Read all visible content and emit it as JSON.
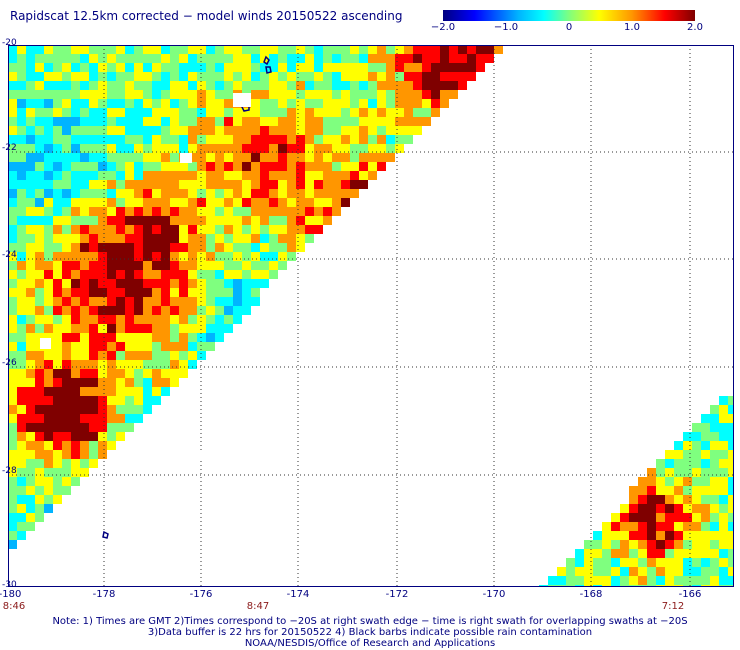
{
  "title": "Rapidscat 12.5km corrected − model winds 20150522 ascending",
  "colorbar": {
    "ticks": [
      "−2.0",
      "−1.0",
      "0",
      "1.0",
      "2.0"
    ],
    "range": [
      -2.0,
      2.0
    ],
    "colors": [
      "#00007f",
      "#0000ff",
      "#00b4ff",
      "#00ffff",
      "#7fff7f",
      "#ffff00",
      "#ff9600",
      "#ff0000",
      "#7f0000"
    ]
  },
  "map": {
    "lon_range": [
      -180,
      -165
    ],
    "lat_range": [
      -30,
      -20
    ],
    "x_tick_labels": [
      "-180",
      "-178",
      "-176",
      "-174",
      "-172",
      "-170",
      "-168",
      "-166"
    ],
    "y_tick_labels": [
      "-20",
      "-22",
      "-24",
      "-26",
      "-28",
      "-30"
    ],
    "gridlines": "dotted",
    "time_labels": [
      {
        "lon": -180,
        "text": "8:46"
      },
      {
        "lon": -175.5,
        "text": "8:47"
      },
      {
        "lon": -166.3,
        "text": "7:12"
      }
    ]
  },
  "notes": [
    "Note: 1) Times are GMT 2)Times correspond to −20S at right swath edge − time is right swath for overlapping swaths at −20S",
    "3)Data buffer is 22 hrs for 20150522 4) Black barbs indicate possible rain contamination",
    "NOAA/NESDIS/Office of Research and Applications"
  ]
}
